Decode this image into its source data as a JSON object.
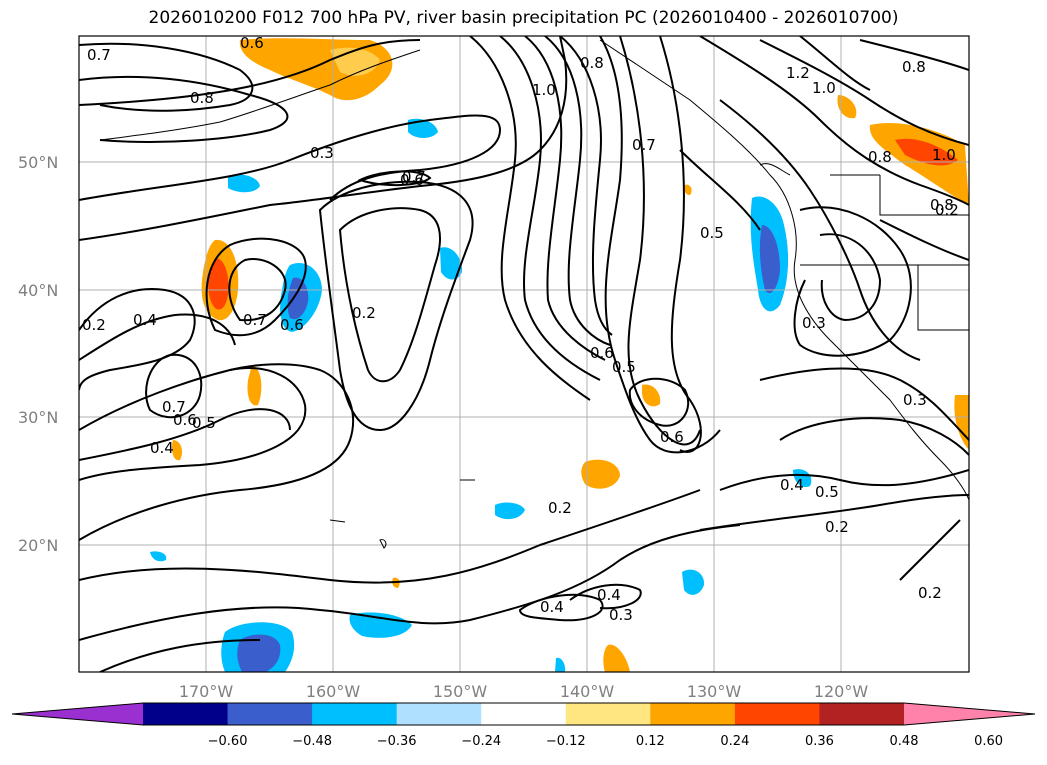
{
  "title": "2026010200 F012 700 hPa PV, river basin precipitation PC (2026010400 - 2026010700)",
  "lat_labels": [
    "50°N",
    "40°N",
    "30°N",
    "20°N"
  ],
  "lon_labels": [
    "170°W",
    "160°W",
    "150°W",
    "140°W",
    "130°W",
    "120°W"
  ],
  "contour_labels": [
    "0.7",
    "0.6",
    "0.8",
    "0.3",
    "1.0",
    "0.8",
    "0.7",
    "0.8",
    "1.2",
    "1.0",
    "0.8",
    "0.8",
    "1.0",
    "0.7",
    "0.6",
    "0.5",
    "0.2",
    "0.4",
    "0.7",
    "0.6",
    "0.2",
    "0.6",
    "0.5",
    "0.3",
    "0.7",
    "0.6",
    "0.5",
    "0.4",
    "0.6",
    "0.3",
    "0.2",
    "0.4",
    "0.5",
    "0.2",
    "0.4",
    "0.4",
    "0.3",
    "0.2",
    "0.2"
  ],
  "colorbar": {
    "ticks": [
      "−0.60",
      "−0.48",
      "−0.36",
      "−0.24",
      "−0.12",
      "0.12",
      "0.24",
      "0.36",
      "0.48",
      "0.60"
    ],
    "colors": [
      "#9b30d0",
      "#00008b",
      "#3a5fcd",
      "#00bfff",
      "#b0e0ff",
      "#ffffff",
      "#ffe680",
      "#ffa500",
      "#ff4500",
      "#b22222",
      "#ff82ab"
    ]
  }
}
